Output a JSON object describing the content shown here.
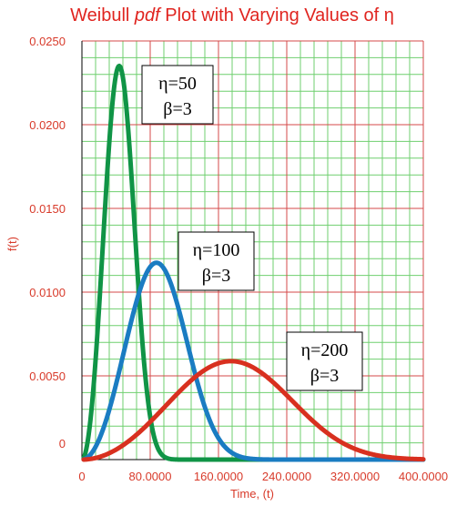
{
  "chart_data": {
    "type": "line",
    "title": {
      "prefix": "Weibull ",
      "italic": "pdf",
      "suffix": " Plot with Varying Values of η"
    },
    "xlabel": "Time, (t)",
    "ylabel": "f(t)",
    "xlim": [
      0,
      400
    ],
    "ylim": [
      0,
      0.025
    ],
    "x_ticks": [
      {
        "value": 0,
        "label": "0"
      },
      {
        "value": 80,
        "label": "80.0000"
      },
      {
        "value": 160,
        "label": "160.0000"
      },
      {
        "value": 240,
        "label": "240.0000"
      },
      {
        "value": 320,
        "label": "320.0000"
      },
      {
        "value": 400,
        "label": "400.0000"
      }
    ],
    "y_ticks": [
      {
        "value": 0,
        "label": "0"
      },
      {
        "value": 0.005,
        "label": "0.0050"
      },
      {
        "value": 0.01,
        "label": "0.0100"
      },
      {
        "value": 0.015,
        "label": "0.0150"
      },
      {
        "value": 0.02,
        "label": "0.0200"
      },
      {
        "value": 0.025,
        "label": "0.0250"
      }
    ],
    "grid": true,
    "series": [
      {
        "eta": 50,
        "beta": 3,
        "color": "#109446"
      },
      {
        "eta": 100,
        "beta": 3,
        "color": "#1a7cc2"
      },
      {
        "eta": 200,
        "beta": 3,
        "color": "#d8301f"
      }
    ],
    "annotations": [
      {
        "line1": "η=50",
        "line2": "β=3"
      },
      {
        "line1": "η=100",
        "line2": "β=3"
      },
      {
        "line1": "η=200",
        "line2": "β=3"
      }
    ],
    "colors": {
      "text": "#d83a2a",
      "title": "#e0241f",
      "major_grid": "#d44848",
      "minor_grid": "#6fcf6f",
      "axis": "#000000"
    }
  }
}
